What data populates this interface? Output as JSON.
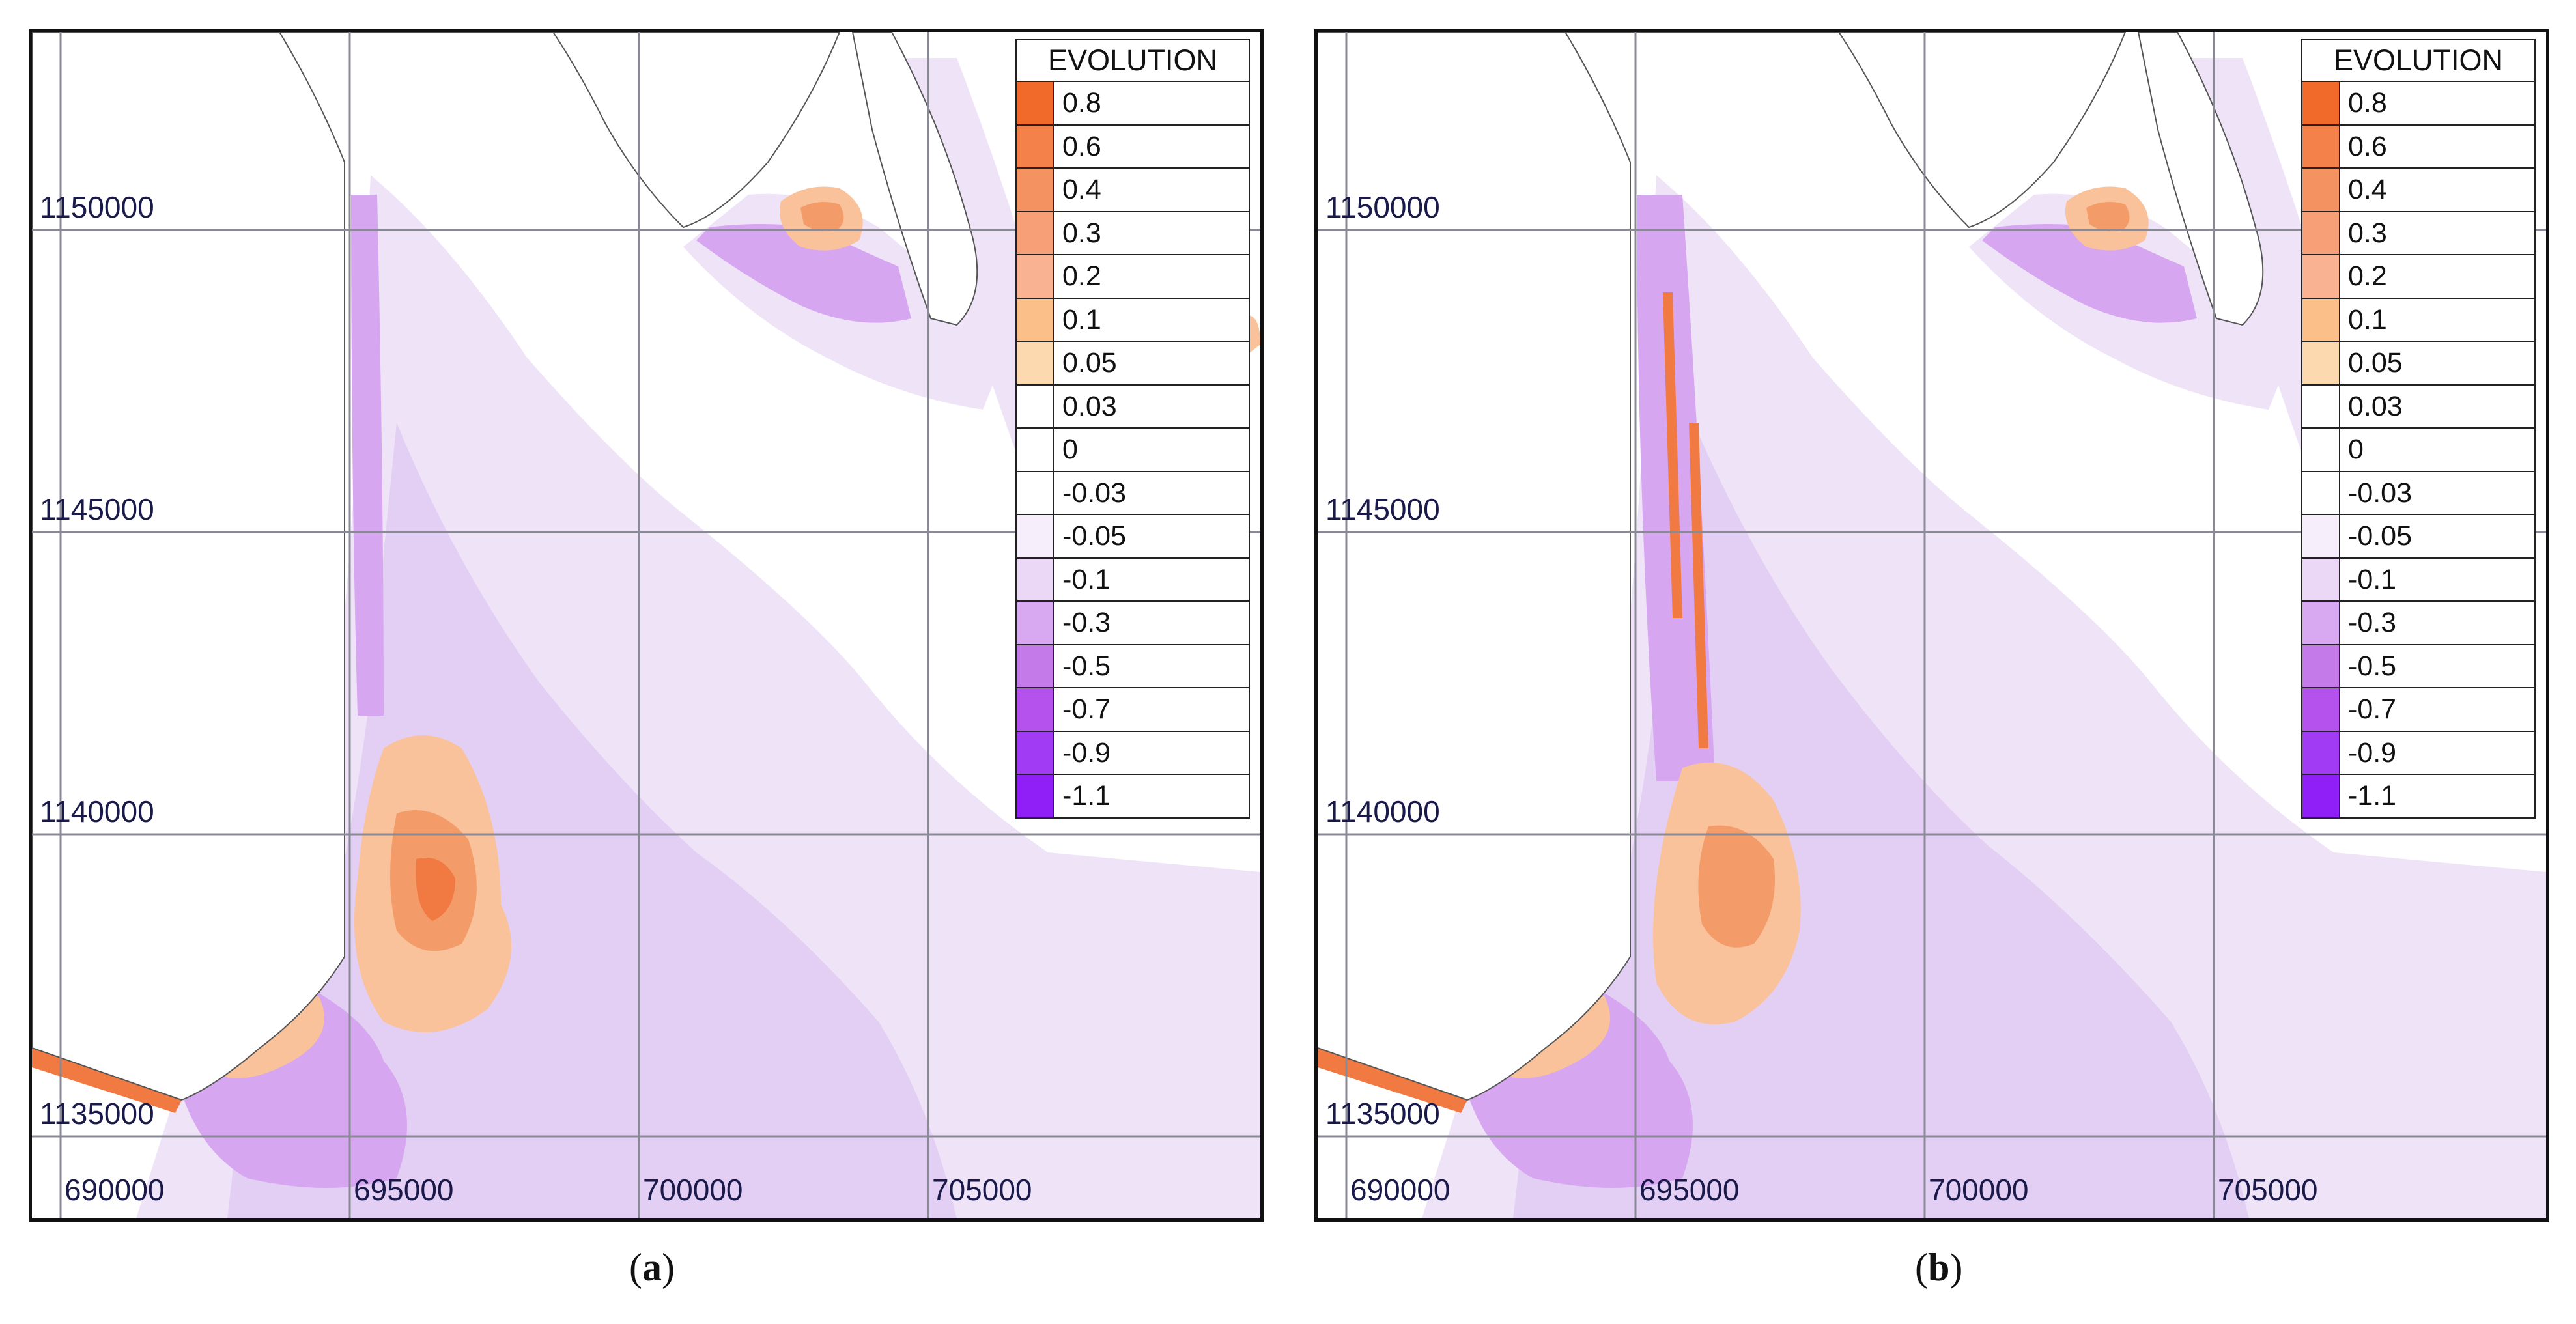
{
  "panels": [
    {
      "id": "a",
      "caption_letter": "a"
    },
    {
      "id": "b",
      "caption_letter": "b"
    }
  ],
  "axes": {
    "x_ticks": [
      "690000",
      "695000",
      "700000",
      "705000"
    ],
    "y_ticks": [
      "1150000",
      "1145000",
      "1140000",
      "1135000"
    ]
  },
  "legend": {
    "title": "EVOLUTION",
    "items": [
      {
        "label": "0.8",
        "color": "#f26a2a"
      },
      {
        "label": "0.6",
        "color": "#f4814a"
      },
      {
        "label": "0.4",
        "color": "#f59262"
      },
      {
        "label": "0.3",
        "color": "#f7a078"
      },
      {
        "label": "0.2",
        "color": "#f9b292"
      },
      {
        "label": "0.1",
        "color": "#fbc08a"
      },
      {
        "label": "0.05",
        "color": "#fdd9b0"
      },
      {
        "label": "0.03",
        "color": "#ffffff"
      },
      {
        "label": "0",
        "color": "#ffffff"
      },
      {
        "label": "-0.03",
        "color": "#ffffff"
      },
      {
        "label": "-0.05",
        "color": "#f6eefb"
      },
      {
        "label": "-0.1",
        "color": "#ead8f6"
      },
      {
        "label": "-0.3",
        "color": "#d8a8f0"
      },
      {
        "label": "-0.5",
        "color": "#c47ae8"
      },
      {
        "label": "-0.7",
        "color": "#b552ee"
      },
      {
        "label": "-0.9",
        "color": "#a23cf4"
      },
      {
        "label": "-1.1",
        "color": "#8f1ff6"
      }
    ]
  },
  "colors": {
    "light_purple": "#efe3f8",
    "mid_purple": "#e3cff4",
    "purple": "#d7a6f0",
    "orange_light": "#f9c29a",
    "orange": "#f49b6a",
    "orange_dark": "#f07a42",
    "grid": "#8a8a96",
    "label": "#1a1a4a"
  }
}
